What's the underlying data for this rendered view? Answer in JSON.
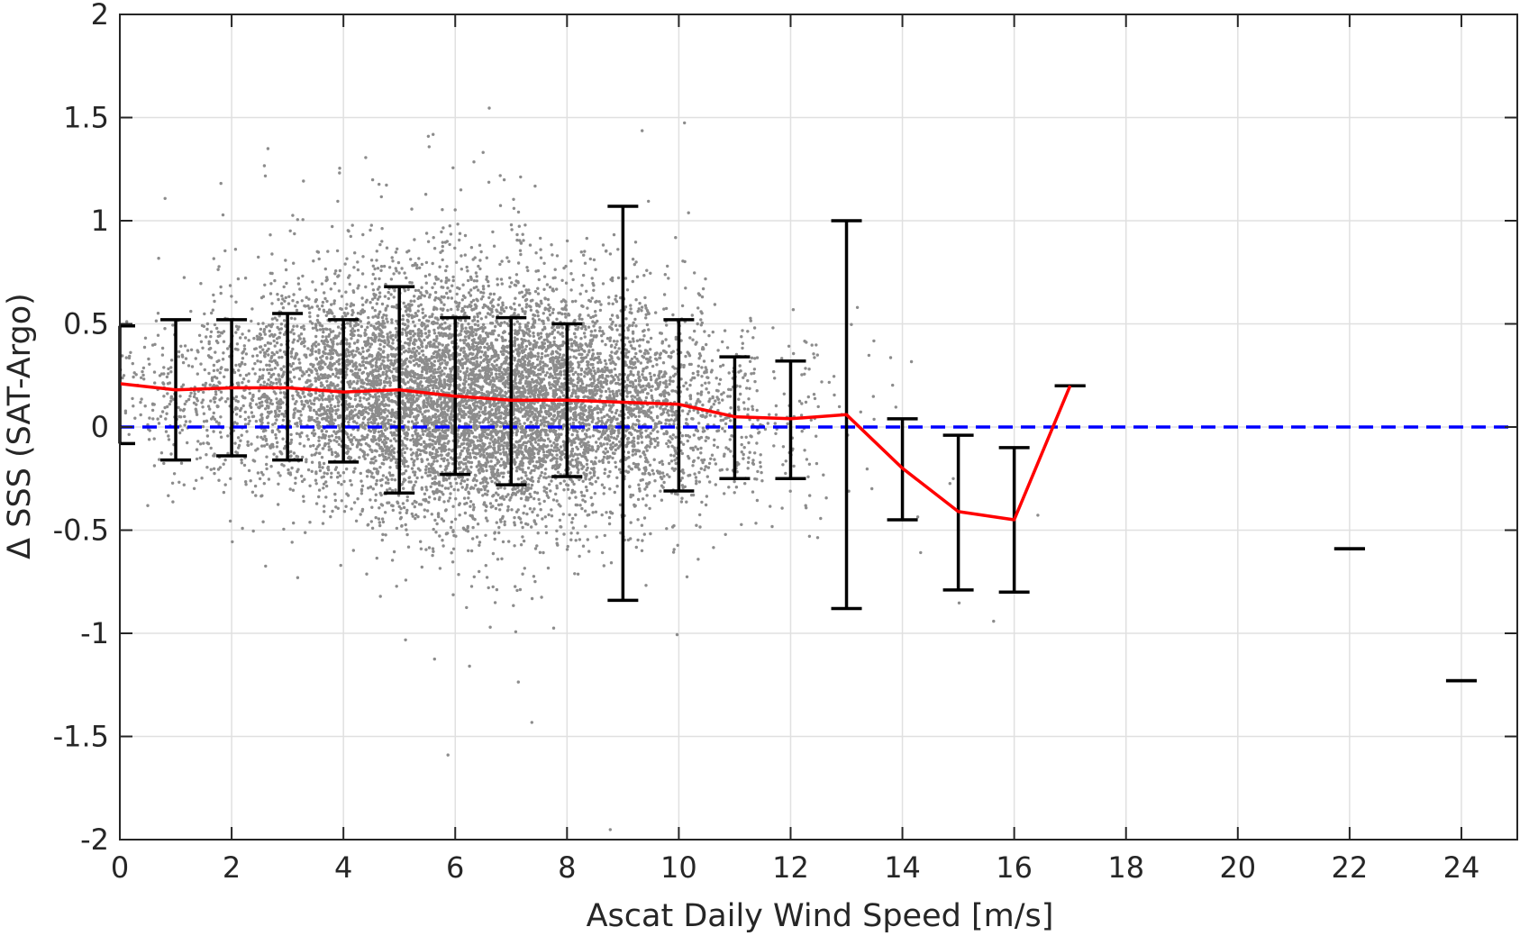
{
  "chart_data": {
    "type": "scatter",
    "title": "",
    "xlabel": "Ascat Daily Wind Speed [m/s]",
    "ylabel": "Δ SSS (SAT-Argo)",
    "xlim": [
      0,
      25
    ],
    "ylim": [
      -2,
      2
    ],
    "xticks": [
      0,
      2,
      4,
      6,
      8,
      10,
      12,
      14,
      16,
      18,
      20,
      22,
      24
    ],
    "yticks": [
      -2,
      -1.5,
      -1,
      -0.5,
      0,
      0.5,
      1,
      1.5,
      2
    ],
    "xtick_labels": [
      "0",
      "2",
      "4",
      "6",
      "8",
      "10",
      "12",
      "14",
      "16",
      "18",
      "20",
      "22",
      "24"
    ],
    "ytick_labels": [
      "-2",
      "-1.5",
      "-1",
      "-0.5",
      "0",
      "0.5",
      "1",
      "1.5",
      "2"
    ],
    "grid": true,
    "legend": "none",
    "colors": {
      "scatter": "#8c8c8c",
      "mean_line": "#ff0000",
      "zero_line": "#0000ff",
      "error_bars": "#000000",
      "grid": "#e0e0e0",
      "axis": "#262626"
    },
    "zero_reference_line": {
      "y": 0,
      "style": "dashed"
    },
    "scatter_cloud": {
      "description_note": "dense cloud of individual matchup points (thousands), concentrated at 3-10 m/s around +0.1",
      "envelope": [
        {
          "x": 0,
          "mean": 0.2,
          "spread": 0.18,
          "count": 60
        },
        {
          "x": 1,
          "mean": 0.18,
          "spread": 0.22,
          "count": 160
        },
        {
          "x": 2,
          "mean": 0.19,
          "spread": 0.24,
          "count": 300
        },
        {
          "x": 3,
          "mean": 0.2,
          "spread": 0.26,
          "count": 550
        },
        {
          "x": 4,
          "mean": 0.18,
          "spread": 0.28,
          "count": 900
        },
        {
          "x": 5,
          "mean": 0.17,
          "spread": 0.3,
          "count": 1300
        },
        {
          "x": 6,
          "mean": 0.15,
          "spread": 0.3,
          "count": 1500
        },
        {
          "x": 7,
          "mean": 0.13,
          "spread": 0.3,
          "count": 1500
        },
        {
          "x": 8,
          "mean": 0.13,
          "spread": 0.28,
          "count": 1200
        },
        {
          "x": 9,
          "mean": 0.12,
          "spread": 0.27,
          "count": 800
        },
        {
          "x": 10,
          "mean": 0.1,
          "spread": 0.25,
          "count": 450
        },
        {
          "x": 11,
          "mean": 0.05,
          "spread": 0.24,
          "count": 200
        },
        {
          "x": 12,
          "mean": 0.03,
          "spread": 0.22,
          "count": 70
        },
        {
          "x": 13,
          "mean": 0.03,
          "spread": 0.3,
          "count": 20
        },
        {
          "x": 14,
          "mean": -0.1,
          "spread": 0.3,
          "count": 6
        },
        {
          "x": 15,
          "mean": -0.3,
          "spread": 0.3,
          "count": 3
        },
        {
          "x": 16,
          "mean": -0.3,
          "spread": 0.3,
          "count": 2
        }
      ]
    },
    "series": [
      {
        "type": "line",
        "x": [
          0,
          1,
          2,
          3,
          4,
          5,
          6,
          7,
          8,
          9,
          10,
          11,
          12,
          13,
          14,
          15,
          16,
          17
        ],
        "values": [
          0.21,
          0.18,
          0.19,
          0.19,
          0.17,
          0.18,
          0.15,
          0.13,
          0.13,
          0.12,
          0.11,
          0.05,
          0.04,
          0.06,
          -0.2,
          -0.41,
          -0.45,
          0.2
        ]
      },
      {
        "type": "errorbar",
        "points": [
          {
            "x": 0,
            "low": -0.08,
            "high": 0.49
          },
          {
            "x": 1,
            "low": -0.16,
            "high": 0.52
          },
          {
            "x": 2,
            "low": -0.14,
            "high": 0.52
          },
          {
            "x": 3,
            "low": -0.16,
            "high": 0.55
          },
          {
            "x": 4,
            "low": -0.17,
            "high": 0.52
          },
          {
            "x": 5,
            "low": -0.32,
            "high": 0.68
          },
          {
            "x": 6,
            "low": -0.23,
            "high": 0.53
          },
          {
            "x": 7,
            "low": -0.28,
            "high": 0.53
          },
          {
            "x": 8,
            "low": -0.24,
            "high": 0.5
          },
          {
            "x": 9,
            "low": -0.84,
            "high": 1.07
          },
          {
            "x": 10,
            "low": -0.31,
            "high": 0.52
          },
          {
            "x": 11,
            "low": -0.25,
            "high": 0.34
          },
          {
            "x": 12,
            "low": -0.25,
            "high": 0.32
          },
          {
            "x": 13,
            "low": -0.88,
            "high": 1.0
          },
          {
            "x": 14,
            "low": -0.45,
            "high": 0.04
          },
          {
            "x": 15,
            "low": -0.79,
            "high": -0.04
          },
          {
            "x": 16,
            "low": -0.8,
            "high": -0.1
          },
          {
            "x": 17,
            "low": 0.2,
            "high": 0.2
          },
          {
            "x": 22,
            "low": -0.59,
            "high": -0.59
          },
          {
            "x": 24,
            "low": -1.23,
            "high": -1.23
          }
        ]
      }
    ]
  }
}
